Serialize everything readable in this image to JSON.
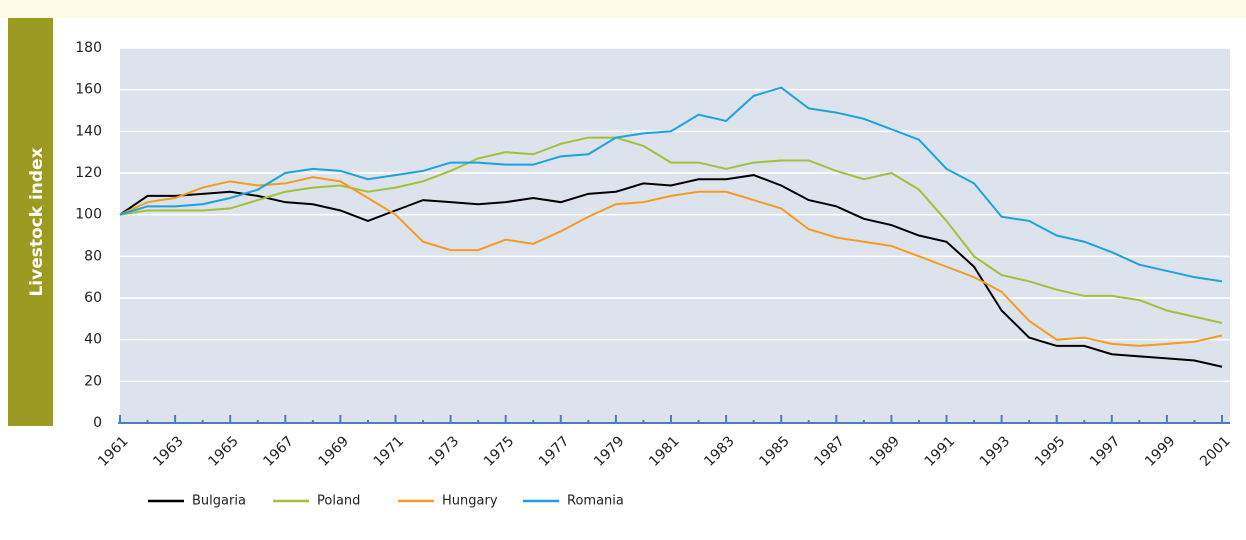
{
  "chart_data": {
    "type": "line",
    "y_label": "Livestock index",
    "categories": [
      "1961",
      null,
      "1963",
      null,
      "1965",
      null,
      "1967",
      null,
      "1969",
      null,
      "1971",
      null,
      "1973",
      null,
      "1975",
      null,
      "1977",
      null,
      "1979",
      null,
      "1981",
      null,
      "1983",
      null,
      "1985",
      null,
      "1987",
      null,
      "1989",
      null,
      "1991",
      null,
      "1993",
      null,
      "1995",
      null,
      "1997",
      null,
      "1999",
      null,
      "2001"
    ],
    "series": [
      {
        "name": "Bulgaria",
        "color": "#000000",
        "values": [
          100,
          109,
          109,
          110,
          111,
          109,
          106,
          105,
          102,
          97,
          102,
          107,
          106,
          105,
          106,
          108,
          106,
          110,
          111,
          115,
          114,
          117,
          117,
          119,
          114,
          107,
          104,
          98,
          95,
          90,
          87,
          75,
          54,
          41,
          37,
          37,
          33,
          32,
          31,
          30,
          27
        ]
      },
      {
        "name": "Poland",
        "color": "#9fc13c",
        "values": [
          100,
          102,
          102,
          102,
          103,
          107,
          111,
          113,
          114,
          111,
          113,
          116,
          121,
          127,
          130,
          129,
          134,
          137,
          137,
          133,
          125,
          125,
          122,
          125,
          126,
          126,
          121,
          117,
          120,
          112,
          97,
          80,
          71,
          68,
          64,
          61,
          61,
          59,
          54,
          51,
          48
        ]
      },
      {
        "name": "Hungary",
        "color": "#f39c1f",
        "values": [
          100,
          106,
          108,
          113,
          116,
          114,
          115,
          118,
          116,
          108,
          100,
          87,
          83,
          83,
          88,
          86,
          92,
          99,
          105,
          106,
          109,
          111,
          111,
          107,
          103,
          93,
          89,
          87,
          85,
          80,
          75,
          70,
          63,
          49,
          40,
          41,
          38,
          37,
          38,
          39,
          42
        ]
      },
      {
        "name": "Romania",
        "color": "#1ca3dc",
        "values": [
          100,
          104,
          104,
          105,
          108,
          112,
          120,
          122,
          121,
          117,
          119,
          121,
          125,
          125,
          124,
          124,
          128,
          129,
          137,
          139,
          140,
          148,
          145,
          157,
          161,
          151,
          149,
          146,
          141,
          136,
          122,
          115,
          99,
          97,
          90,
          87,
          82,
          76,
          73,
          70,
          68
        ]
      }
    ],
    "ylim": [
      0,
      180
    ],
    "yticks": [
      0,
      20,
      40,
      60,
      80,
      100,
      120,
      140,
      160,
      180
    ],
    "grid": true
  }
}
